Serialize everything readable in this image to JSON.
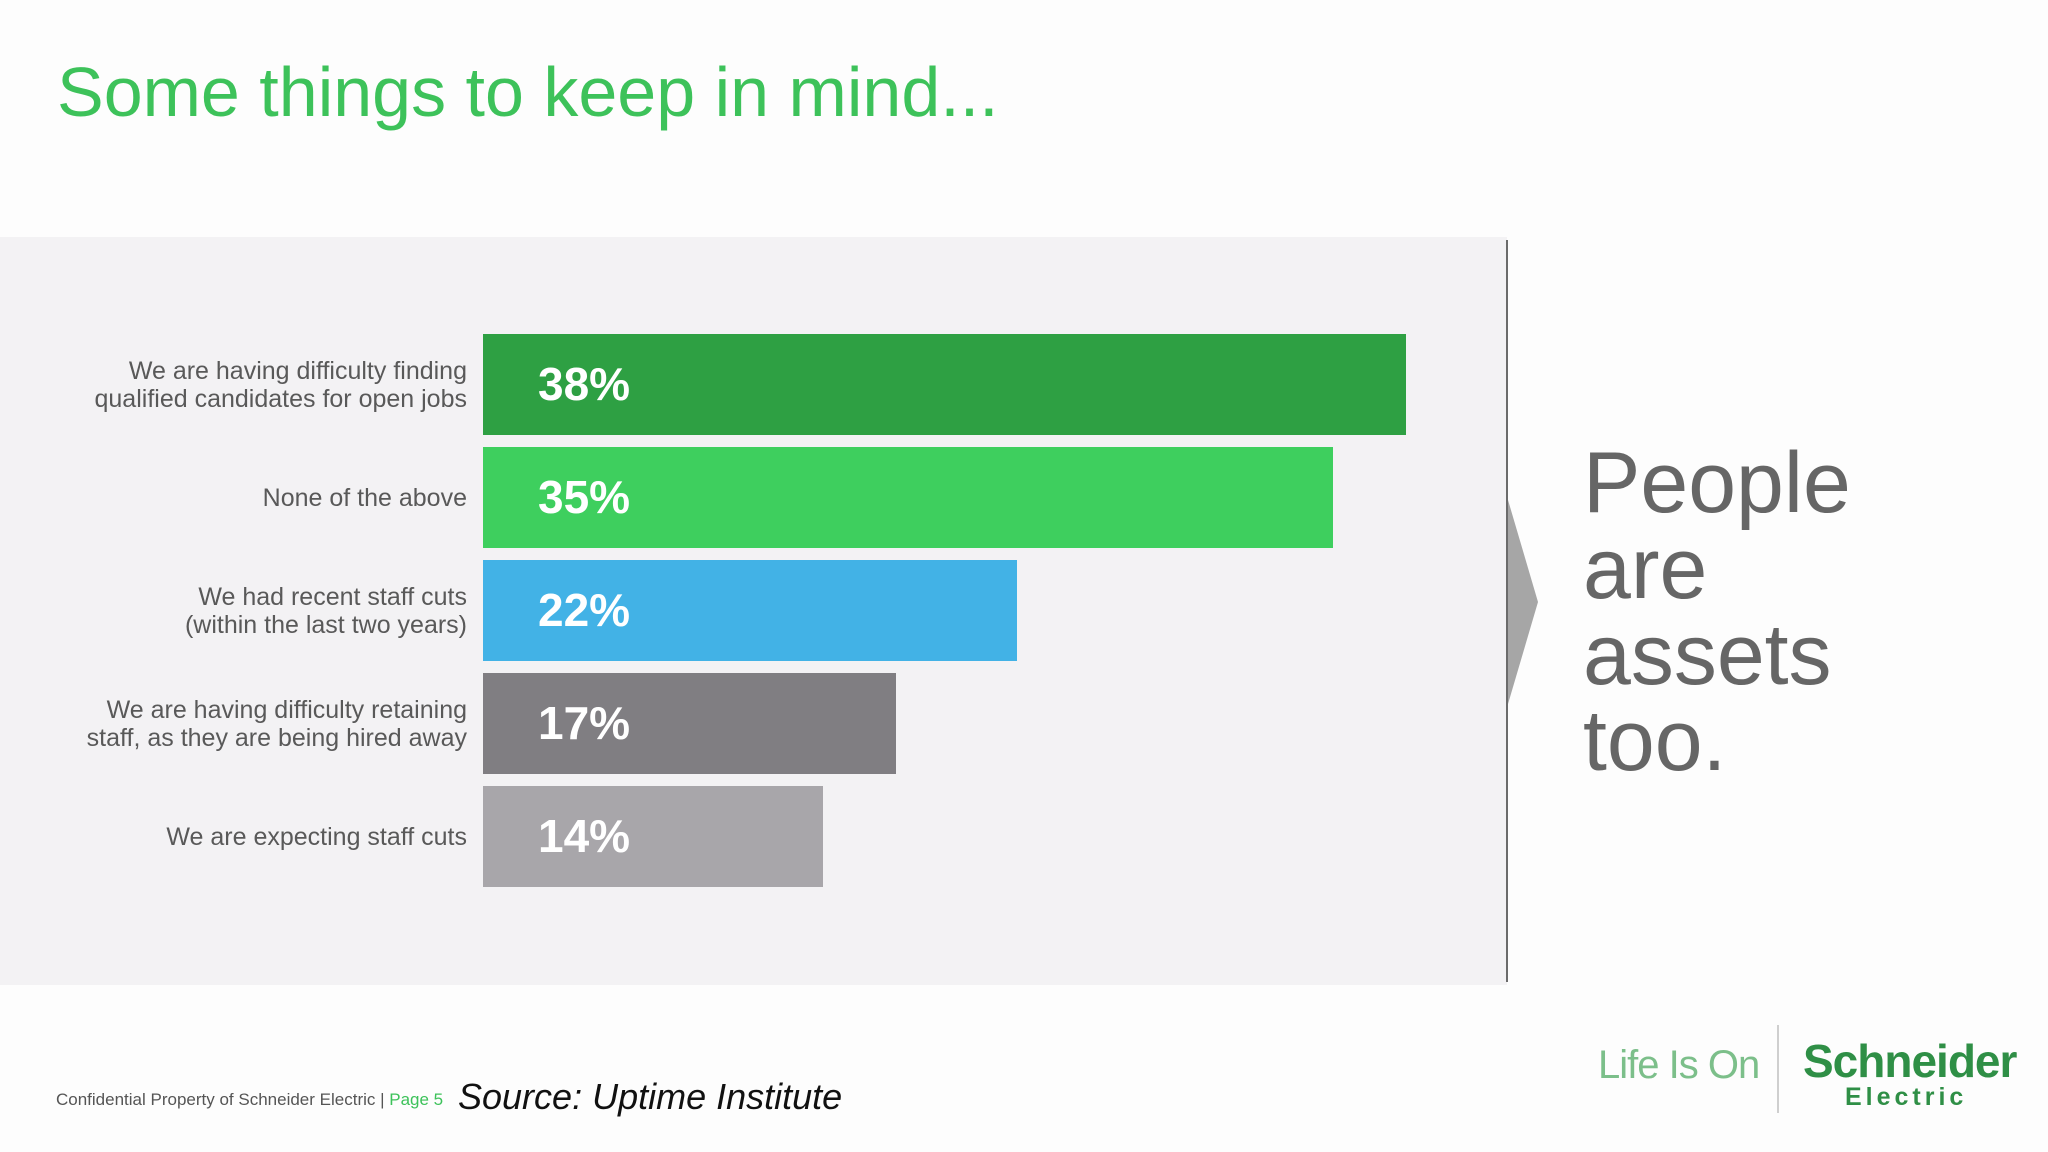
{
  "title": "Some things to keep in mind...",
  "chart_data": {
    "type": "bar",
    "orientation": "horizontal",
    "title": "",
    "xlabel": "",
    "ylabel": "",
    "xlim": [
      0,
      40
    ],
    "grid": false,
    "categories": [
      [
        "We are having difficulty finding",
        "qualified candidates for open jobs"
      ],
      [
        "None of the above"
      ],
      [
        "We had recent staff cuts",
        "(within the last two years)"
      ],
      [
        "We are having difficulty retaining",
        "staff, as they are being hired away"
      ],
      [
        "We are expecting staff cuts"
      ]
    ],
    "values": [
      38,
      35,
      22,
      17,
      14
    ],
    "value_labels": [
      "38%",
      "35%",
      "22%",
      "17%",
      "14%"
    ],
    "colors": [
      "#2ea043",
      "#3ecf5e",
      "#42b2e6",
      "#807e82",
      "#a8a6aa"
    ]
  },
  "tagline": [
    "People",
    "are",
    "assets",
    "too."
  ],
  "footer": {
    "confidential": "Confidential Property of Schneider Electric | ",
    "page": "Page 5",
    "source": "Source: Uptime Institute"
  },
  "brand": {
    "tagline": "Life Is On",
    "logo_top": "Schneider",
    "logo_bottom": "Electric"
  }
}
